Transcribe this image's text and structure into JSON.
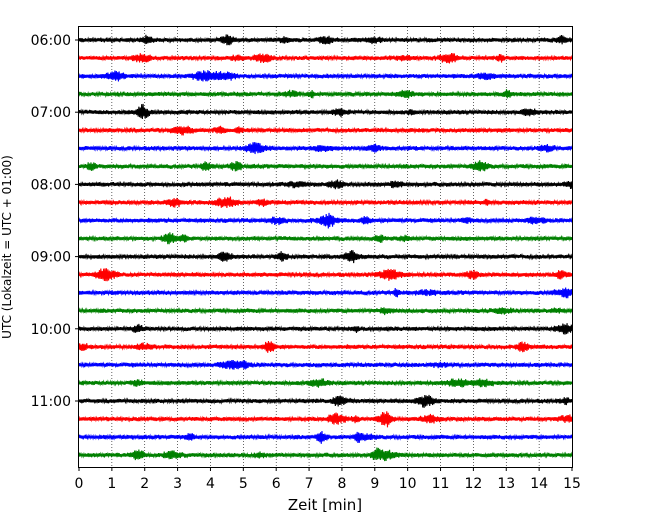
{
  "chart_data": {
    "type": "line",
    "title": "",
    "xlabel": "Zeit  [min]",
    "ylabel": "UTC (Lokalzeit = UTC + 01:00)",
    "xlim": [
      0,
      15
    ],
    "x_ticks": [
      "0",
      "1",
      "2",
      "3",
      "4",
      "5",
      "6",
      "7",
      "8",
      "9",
      "10",
      "11",
      "12",
      "13",
      "14",
      "15"
    ],
    "y_tick_labels": [
      "06:00",
      "07:00",
      "08:00",
      "09:00",
      "10:00",
      "11:00"
    ],
    "grid": "vertical dotted",
    "colors": [
      "#000000",
      "#ff0000",
      "#0000ff",
      "#008000"
    ],
    "trace_starts": [
      "06:00",
      "06:15",
      "06:30",
      "06:45",
      "07:00",
      "07:15",
      "07:30",
      "07:45",
      "08:00",
      "08:15",
      "08:30",
      "08:45",
      "09:00",
      "09:15",
      "09:30",
      "09:45",
      "10:00",
      "10:15",
      "10:30",
      "10:45",
      "11:00",
      "11:15",
      "11:30",
      "11:45"
    ],
    "traces_per_hour": 4,
    "trace_length_min": 15
  }
}
